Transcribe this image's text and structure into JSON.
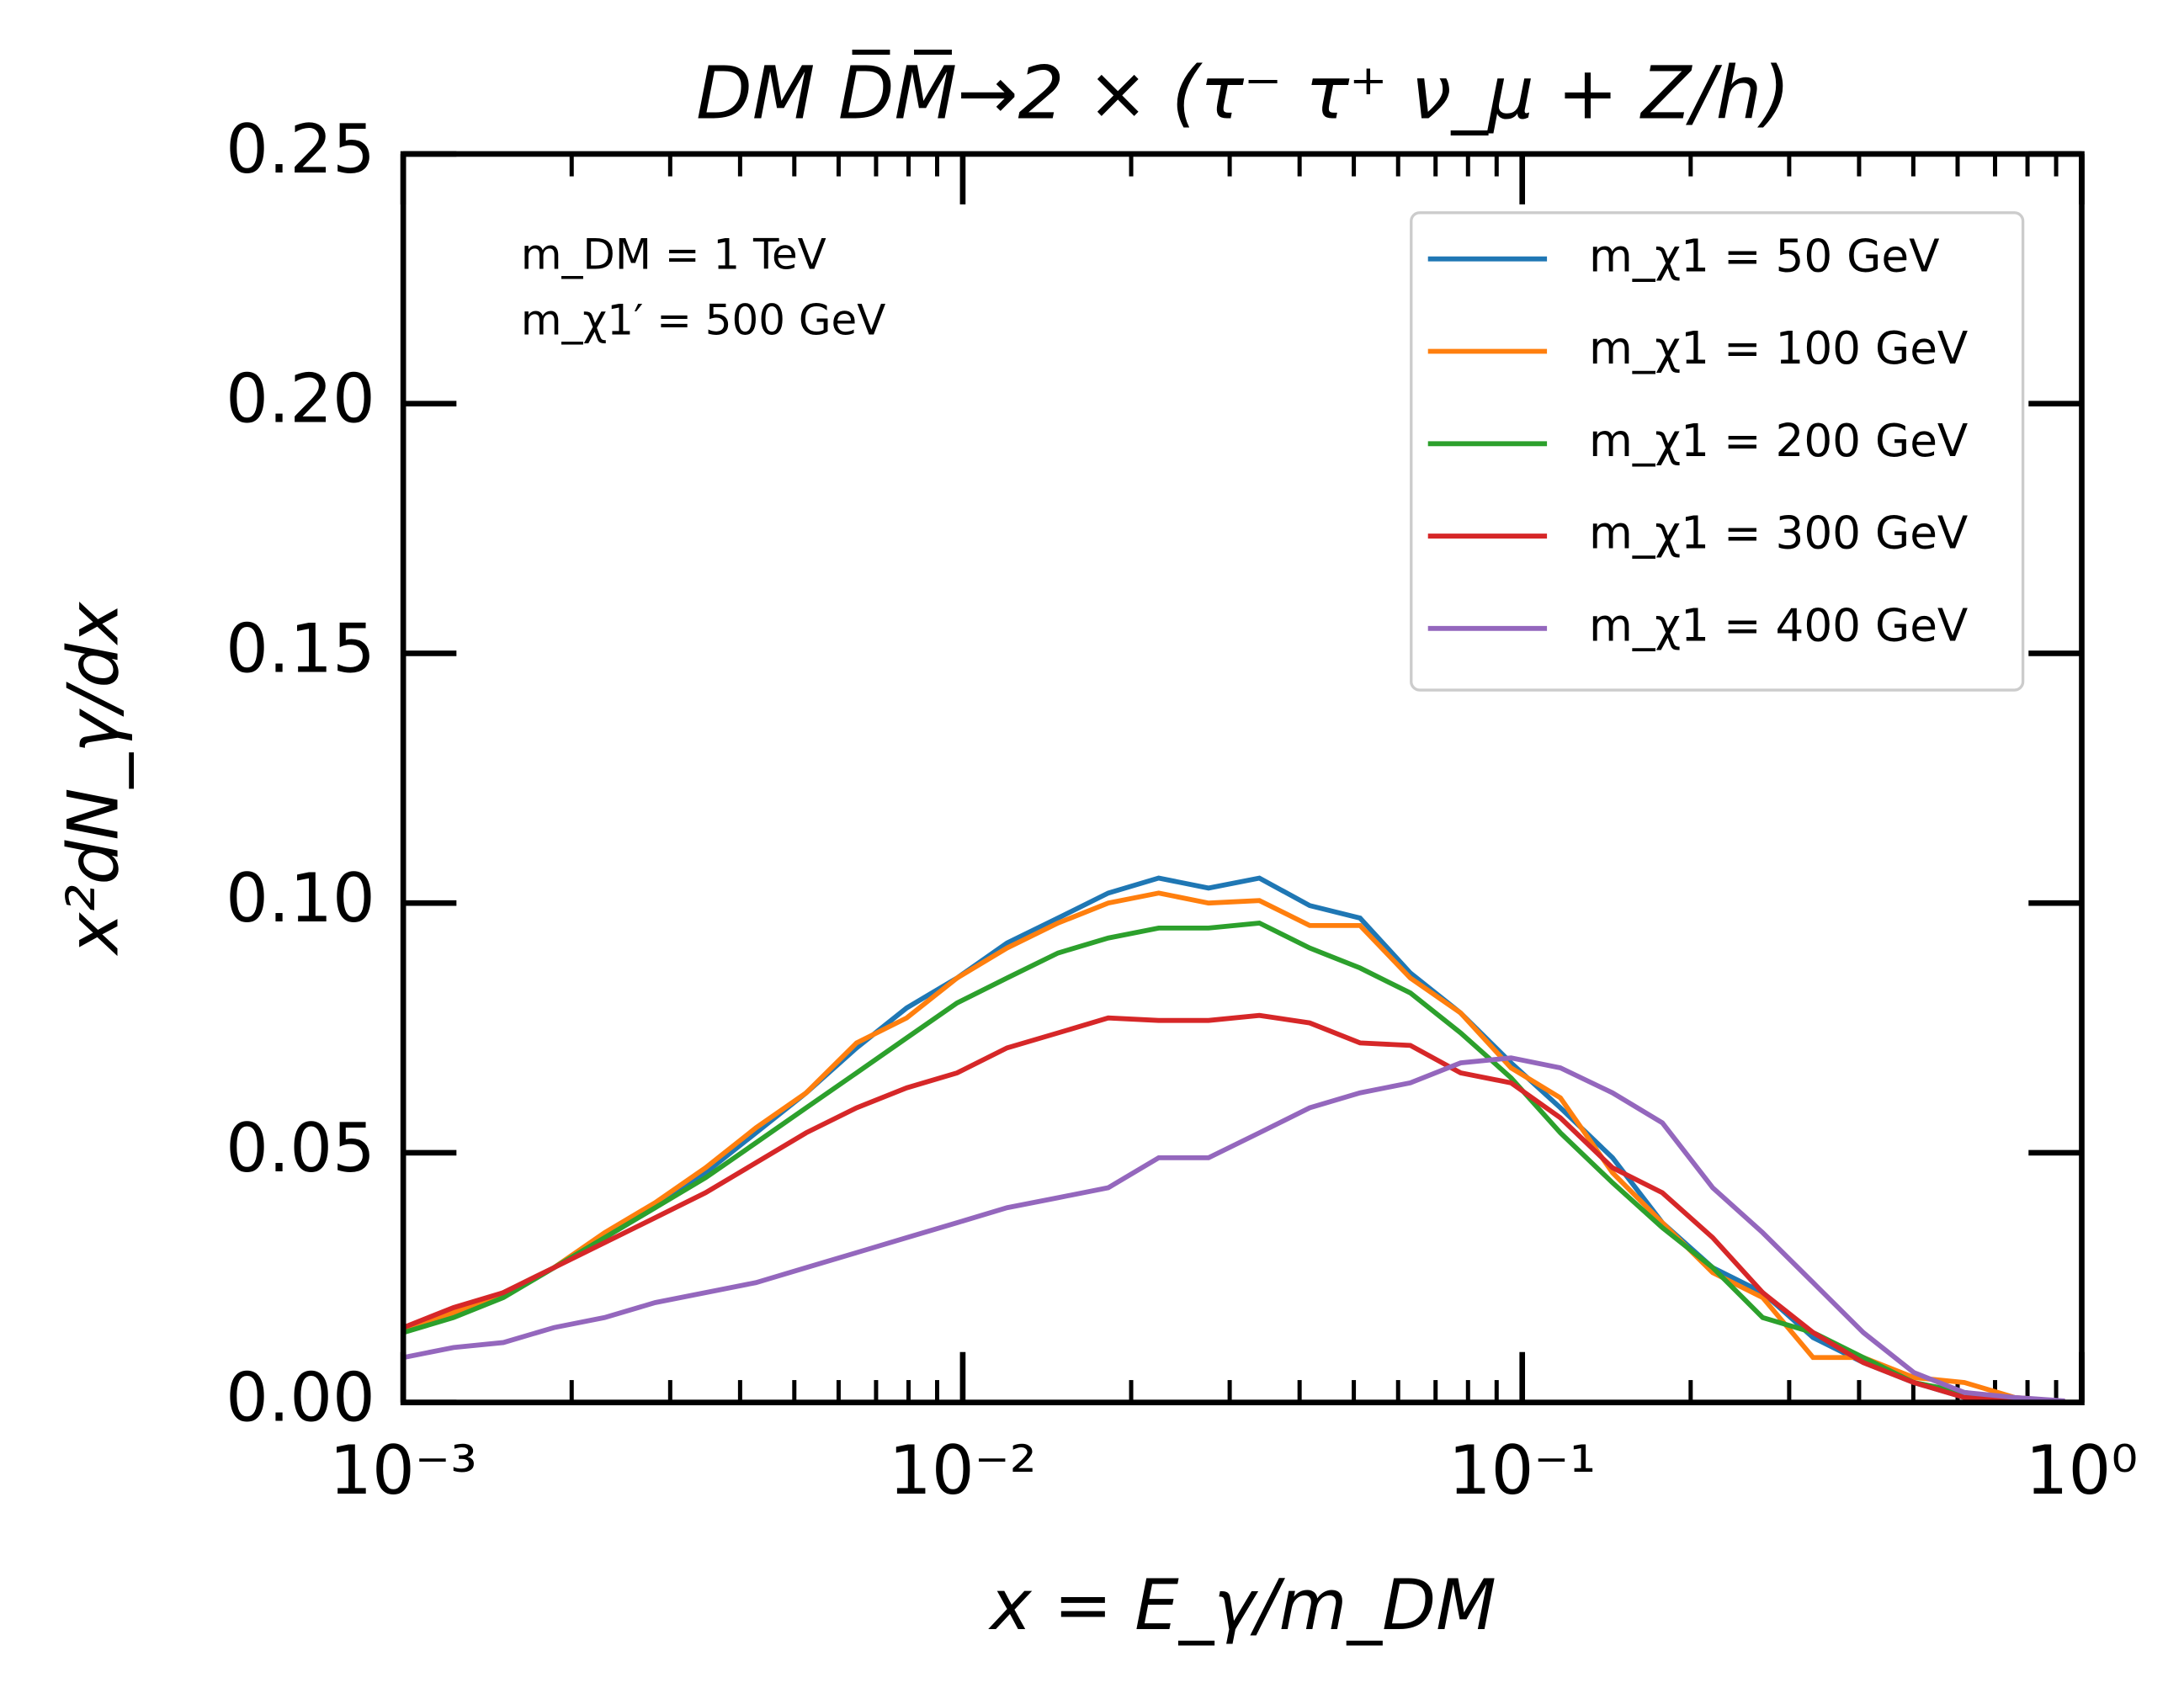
{
  "chart_data": {
    "type": "line",
    "title": "DM D̅M̅→2 × (τ⁻ τ⁺ ν_μ + Z/h)",
    "x_label": "x = E_γ/m_DM",
    "y_label": "x²dN_γ/dx",
    "annotations": [
      "m_DM = 1 TeV",
      "m_χ1′ = 500 GeV"
    ],
    "x_scale": "log",
    "xlim": [
      0.001,
      1
    ],
    "xticks": [
      {
        "value": 0.001,
        "label": "10⁻³"
      },
      {
        "value": 0.01,
        "label": "10⁻²"
      },
      {
        "value": 0.1,
        "label": "10⁻¹"
      },
      {
        "value": 1,
        "label": "10⁰"
      }
    ],
    "ylim": [
      0,
      0.25
    ],
    "yticks": [
      {
        "value": 0,
        "label": "0.00"
      },
      {
        "value": 0.05,
        "label": "0.05"
      },
      {
        "value": 0.1,
        "label": "0.10"
      },
      {
        "value": 0.15,
        "label": "0.15"
      },
      {
        "value": 0.2,
        "label": "0.20"
      },
      {
        "value": 0.25,
        "label": "0.25"
      }
    ],
    "grid": false,
    "legend": "upper right",
    "x": [
      0.001,
      0.00123,
      0.00151,
      0.00186,
      0.00229,
      0.00282,
      0.00347,
      0.00427,
      0.00525,
      0.00646,
      0.00794,
      0.00977,
      0.012,
      0.0148,
      0.0182,
      0.0224,
      0.0275,
      0.0339,
      0.0417,
      0.0513,
      0.0631,
      0.0776,
      0.0955,
      0.117,
      0.145,
      0.178,
      0.219,
      0.269,
      0.331,
      0.407,
      0.501,
      0.617,
      0.759,
      0.933
    ],
    "series": [
      {
        "name": "m_χ1 = 50 GeV",
        "color": "#1f77b4",
        "values": [
          0.014,
          0.018,
          0.022,
          0.027,
          0.033,
          0.039,
          0.046,
          0.054,
          0.062,
          0.071,
          0.079,
          0.085,
          0.092,
          0.097,
          0.102,
          0.105,
          0.103,
          0.105,
          0.0995,
          0.097,
          0.086,
          0.078,
          0.068,
          0.059,
          0.049,
          0.036,
          0.027,
          0.022,
          0.013,
          0.008,
          0.004,
          0.001,
          0.0003,
          0.0001
        ]
      },
      {
        "name": "m_χ1 = 100 GeV",
        "color": "#ff7f0e",
        "values": [
          0.014,
          0.018,
          0.022,
          0.027,
          0.034,
          0.04,
          0.047,
          0.055,
          0.062,
          0.072,
          0.077,
          0.085,
          0.091,
          0.096,
          0.1,
          0.102,
          0.1,
          0.1005,
          0.0955,
          0.0955,
          0.085,
          0.078,
          0.067,
          0.061,
          0.046,
          0.036,
          0.026,
          0.021,
          0.009,
          0.009,
          0.005,
          0.004,
          0.001,
          0.0002
        ]
      },
      {
        "name": "m_χ1 = 200 GeV",
        "color": "#2ca02c",
        "values": [
          0.014,
          0.017,
          0.021,
          0.027,
          0.033,
          0.039,
          0.045,
          0.052,
          0.059,
          0.066,
          0.073,
          0.08,
          0.085,
          0.09,
          0.093,
          0.095,
          0.095,
          0.096,
          0.091,
          0.087,
          0.082,
          0.074,
          0.065,
          0.054,
          0.044,
          0.035,
          0.027,
          0.017,
          0.014,
          0.009,
          0.004,
          0.002,
          0.0005,
          0.0002
        ]
      },
      {
        "name": "m_χ1 = 300 GeV",
        "color": "#d62728",
        "values": [
          0.015,
          0.019,
          0.022,
          0.027,
          0.032,
          0.037,
          0.042,
          0.048,
          0.054,
          0.059,
          0.063,
          0.066,
          0.071,
          0.074,
          0.077,
          0.0765,
          0.0765,
          0.0775,
          0.076,
          0.072,
          0.0715,
          0.066,
          0.064,
          0.057,
          0.047,
          0.042,
          0.033,
          0.022,
          0.014,
          0.008,
          0.004,
          0.001,
          0.0002,
          0.0001
        ]
      },
      {
        "name": "m_χ1 = 400 GeV",
        "color": "#9467bd",
        "values": [
          0.009,
          0.011,
          0.012,
          0.015,
          0.017,
          0.02,
          0.022,
          0.024,
          0.027,
          0.03,
          0.033,
          0.036,
          0.039,
          0.041,
          0.043,
          0.049,
          0.049,
          0.054,
          0.059,
          0.062,
          0.064,
          0.068,
          0.069,
          0.067,
          0.062,
          0.056,
          0.043,
          0.034,
          0.024,
          0.014,
          0.006,
          0.002,
          0.001,
          0.0003
        ]
      }
    ]
  }
}
